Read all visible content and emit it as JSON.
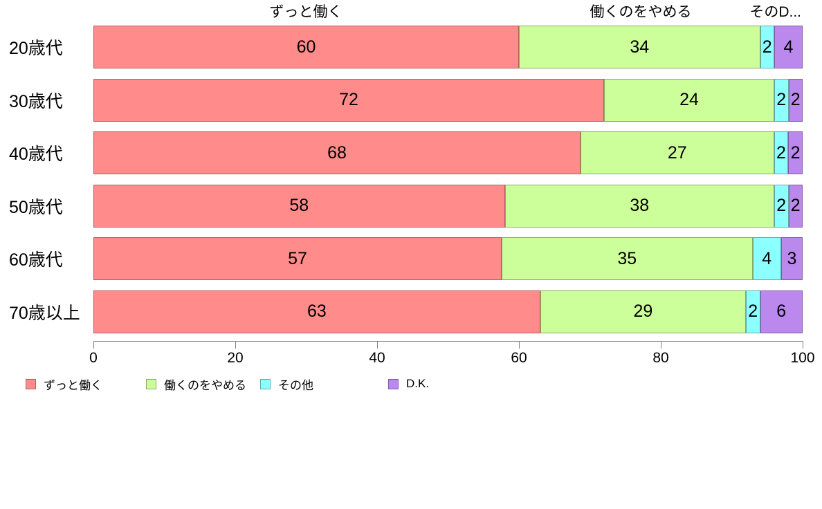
{
  "top_labels": [
    "ずっと働く",
    "働くのをやめる",
    "そのD..."
  ],
  "chart_data": {
    "type": "bar",
    "orientation": "horizontal",
    "stacked": true,
    "normalized_to_100": true,
    "categories": [
      "20歳代",
      "30歳代",
      "40歳代",
      "50歳代",
      "60歳代",
      "70歳以上"
    ],
    "series": [
      {
        "name": "ずっと働く",
        "color": "#ff8b8b",
        "border": "#b05f5f",
        "values": [
          60,
          72,
          68,
          58,
          57,
          63
        ]
      },
      {
        "name": "働くのをやめる",
        "color": "#ccff99",
        "border": "#8aa95f",
        "values": [
          34,
          24,
          27,
          38,
          35,
          29
        ]
      },
      {
        "name": "その他",
        "color": "#8cffff",
        "border": "#5fa9a9",
        "values": [
          2,
          2,
          2,
          2,
          4,
          2
        ]
      },
      {
        "name": "D.K.",
        "color": "#bb88ee",
        "border": "#7f5ba3",
        "values": [
          4,
          2,
          2,
          2,
          3,
          6
        ]
      }
    ],
    "title": "",
    "xlabel": "",
    "ylabel": "",
    "xlim": [
      0,
      100
    ],
    "x_ticks": [
      0,
      20,
      40,
      60,
      80,
      100
    ],
    "grid": false,
    "legend_position": "bottom",
    "legend_labels": [
      "ずっと働く",
      "働くのをやめる",
      "その他",
      "D.K."
    ]
  }
}
